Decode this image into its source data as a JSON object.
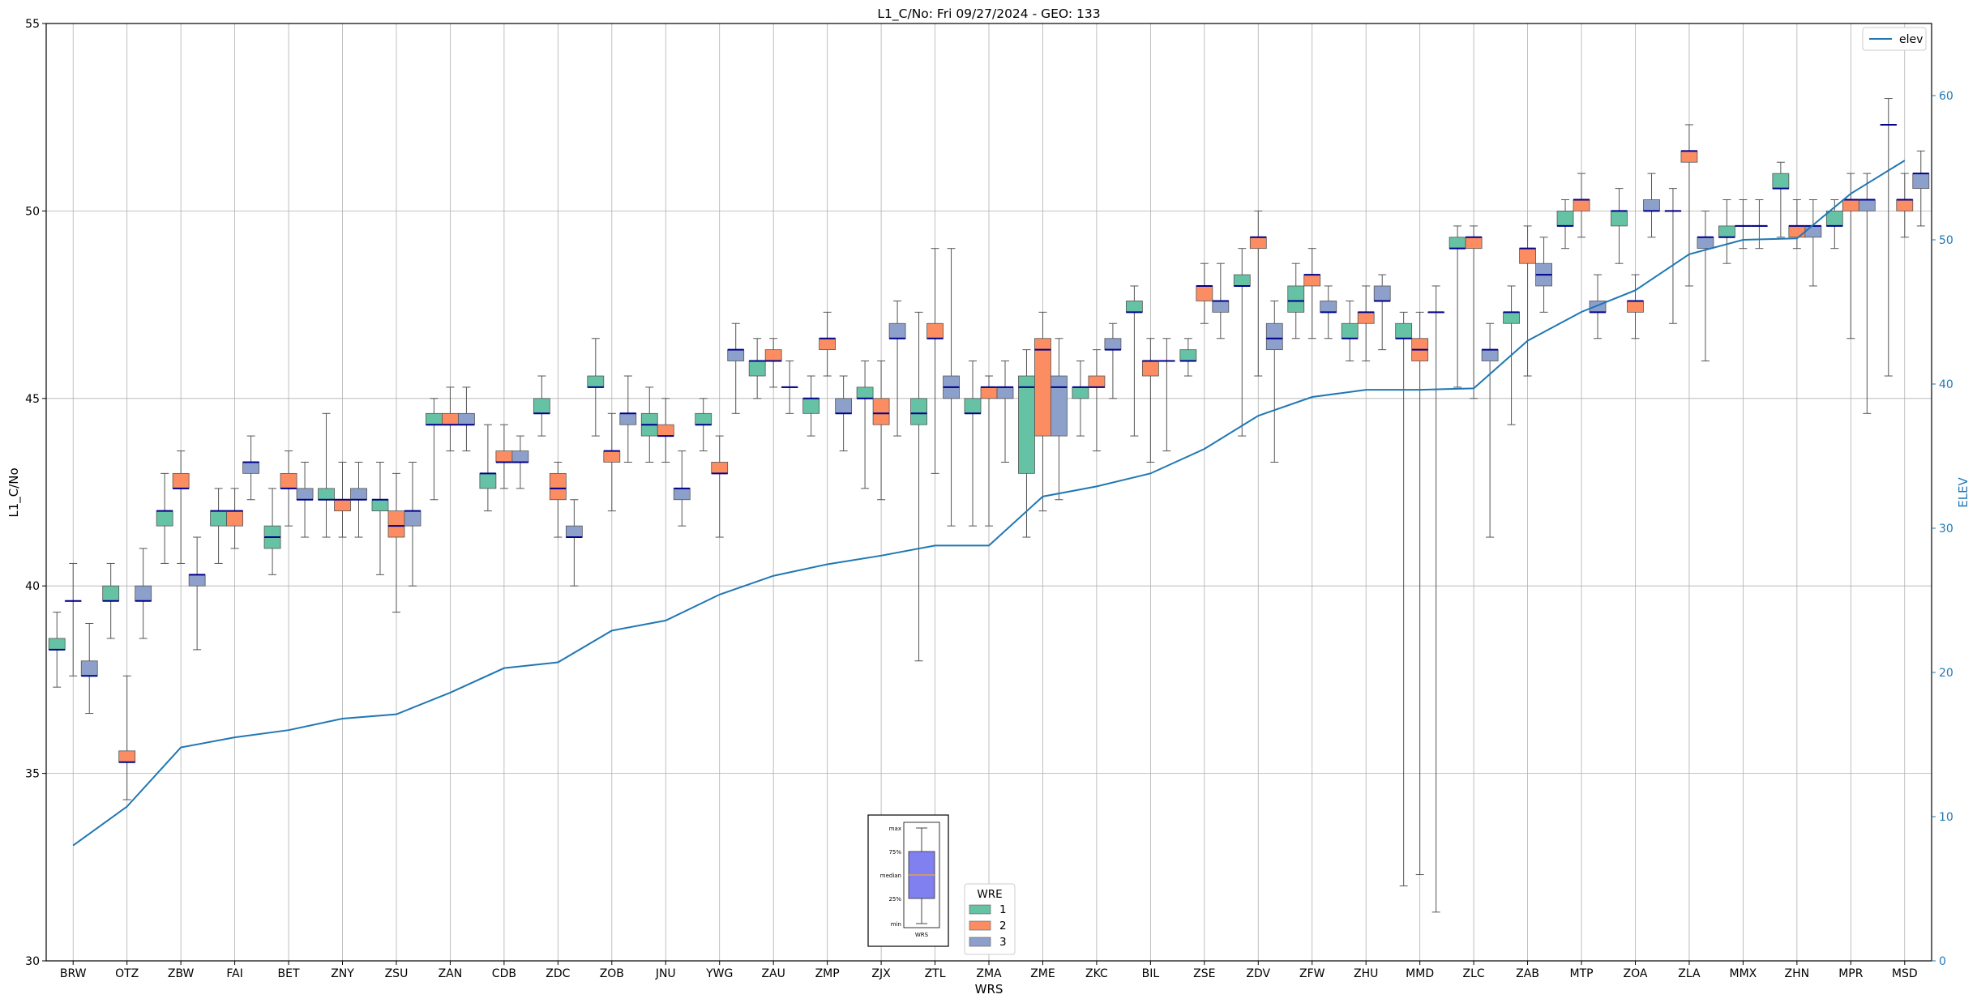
{
  "chart_data": {
    "type": "box",
    "title": "L1_C/No: Fri 09/27/2024 - GEO: 133",
    "xlabel": "WRS",
    "ylabel": "L1_C/No",
    "y2label": "ELEV",
    "ylim": [
      30,
      55
    ],
    "y2lim": [
      0,
      65
    ],
    "yticks": [
      30,
      35,
      40,
      45,
      50,
      55
    ],
    "y2ticks": [
      0,
      10,
      20,
      30,
      40,
      50,
      60
    ],
    "grid": true,
    "categories": [
      "BRW",
      "OTZ",
      "ZBW",
      "FAI",
      "BET",
      "ZNY",
      "ZSU",
      "ZAN",
      "CDB",
      "ZDC",
      "ZOB",
      "JNU",
      "YWG",
      "ZAU",
      "ZMP",
      "ZJX",
      "ZTL",
      "ZMA",
      "ZME",
      "ZKC",
      "BIL",
      "ZSE",
      "ZDV",
      "ZFW",
      "ZHU",
      "MMD",
      "ZLC",
      "ZAB",
      "MTP",
      "ZOA",
      "ZLA",
      "MMX",
      "ZHN",
      "MPR",
      "MSD"
    ],
    "legend_title": "WRE",
    "legend_position": "lower-center",
    "series": [
      {
        "name": "1",
        "color": "#66c2a5",
        "boxes": [
          {
            "whislo": 37.3,
            "q1": 38.3,
            "med": 38.3,
            "q3": 38.6,
            "whishi": 39.3
          },
          {
            "whislo": 38.6,
            "q1": 39.6,
            "med": 39.6,
            "q3": 40.0,
            "whishi": 40.6
          },
          {
            "whislo": 40.6,
            "q1": 41.6,
            "med": 42.0,
            "q3": 42.0,
            "whishi": 43.0
          },
          {
            "whislo": 40.6,
            "q1": 41.6,
            "med": 42.0,
            "q3": 42.0,
            "whishi": 42.6
          },
          {
            "whislo": 40.3,
            "q1": 41.0,
            "med": 41.3,
            "q3": 41.6,
            "whishi": 42.6
          },
          {
            "whislo": 41.3,
            "q1": 42.3,
            "med": 42.3,
            "q3": 42.6,
            "whishi": 44.6
          },
          {
            "whislo": 40.3,
            "q1": 42.0,
            "med": 42.3,
            "q3": 42.3,
            "whishi": 43.3
          },
          {
            "whislo": 42.3,
            "q1": 44.3,
            "med": 44.3,
            "q3": 44.6,
            "whishi": 45.0
          },
          {
            "whislo": 42.0,
            "q1": 42.6,
            "med": 43.0,
            "q3": 43.0,
            "whishi": 44.3
          },
          {
            "whislo": 44.0,
            "q1": 44.6,
            "med": 44.6,
            "q3": 45.0,
            "whishi": 45.6
          },
          {
            "whislo": 44.0,
            "q1": 45.3,
            "med": 45.3,
            "q3": 45.6,
            "whishi": 46.6
          },
          {
            "whislo": 43.3,
            "q1": 44.0,
            "med": 44.3,
            "q3": 44.6,
            "whishi": 45.3
          },
          {
            "whislo": 43.6,
            "q1": 44.3,
            "med": 44.3,
            "q3": 44.6,
            "whishi": 45.0
          },
          {
            "whislo": 45.0,
            "q1": 45.6,
            "med": 46.0,
            "q3": 46.0,
            "whishi": 46.6
          },
          {
            "whislo": 44.0,
            "q1": 44.6,
            "med": 45.0,
            "q3": 45.0,
            "whishi": 45.6
          },
          {
            "whislo": 42.6,
            "q1": 45.0,
            "med": 45.0,
            "q3": 45.3,
            "whishi": 46.0
          },
          {
            "whislo": 38.0,
            "q1": 44.3,
            "med": 44.6,
            "q3": 45.0,
            "whishi": 47.3
          },
          {
            "whislo": 41.6,
            "q1": 44.6,
            "med": 44.6,
            "q3": 45.0,
            "whishi": 46.0
          },
          {
            "whislo": 41.3,
            "q1": 43.0,
            "med": 45.3,
            "q3": 45.6,
            "whishi": 46.3
          },
          {
            "whislo": 44.0,
            "q1": 45.0,
            "med": 45.3,
            "q3": 45.3,
            "whishi": 46.0
          },
          {
            "whislo": 44.0,
            "q1": 47.3,
            "med": 47.3,
            "q3": 47.6,
            "whishi": 48.0
          },
          {
            "whislo": 45.6,
            "q1": 46.0,
            "med": 46.0,
            "q3": 46.3,
            "whishi": 46.6
          },
          {
            "whislo": 44.0,
            "q1": 48.0,
            "med": 48.0,
            "q3": 48.3,
            "whishi": 49.0
          },
          {
            "whislo": 46.6,
            "q1": 47.3,
            "med": 47.6,
            "q3": 48.0,
            "whishi": 48.6
          },
          {
            "whislo": 46.0,
            "q1": 46.6,
            "med": 46.6,
            "q3": 47.0,
            "whishi": 47.6
          },
          {
            "whislo": 32.0,
            "q1": 46.6,
            "med": 46.6,
            "q3": 47.0,
            "whishi": 47.3
          },
          {
            "whislo": 45.3,
            "q1": 49.0,
            "med": 49.0,
            "q3": 49.3,
            "whishi": 49.6
          },
          {
            "whislo": 44.3,
            "q1": 47.0,
            "med": 47.3,
            "q3": 47.3,
            "whishi": 48.0
          },
          {
            "whislo": 49.0,
            "q1": 49.6,
            "med": 49.6,
            "q3": 50.0,
            "whishi": 50.3
          },
          {
            "whislo": 48.6,
            "q1": 49.6,
            "med": 50.0,
            "q3": 50.0,
            "whishi": 50.6
          },
          {
            "whislo": 47.0,
            "q1": 50.0,
            "med": 50.0,
            "q3": 50.0,
            "whishi": 50.6
          },
          {
            "whislo": 48.6,
            "q1": 49.3,
            "med": 49.3,
            "q3": 49.6,
            "whishi": 50.3
          },
          {
            "whislo": 49.3,
            "q1": 50.6,
            "med": 50.6,
            "q3": 51.0,
            "whishi": 51.3
          },
          {
            "whislo": 49.0,
            "q1": 49.6,
            "med": 49.6,
            "q3": 50.0,
            "whishi": 50.3
          },
          {
            "whislo": 45.6,
            "q1": 52.3,
            "med": 52.3,
            "q3": 52.3,
            "whishi": 53.0
          }
        ]
      },
      {
        "name": "2",
        "color": "#fc8d62",
        "boxes": [
          {
            "whislo": 37.6,
            "q1": 39.6,
            "med": 39.6,
            "q3": 39.6,
            "whishi": 40.6
          },
          {
            "whislo": 34.3,
            "q1": 35.3,
            "med": 35.3,
            "q3": 35.6,
            "whishi": 37.6
          },
          {
            "whislo": 40.6,
            "q1": 42.6,
            "med": 42.6,
            "q3": 43.0,
            "whishi": 43.6
          },
          {
            "whislo": 41.0,
            "q1": 41.6,
            "med": 42.0,
            "q3": 42.0,
            "whishi": 42.6
          },
          {
            "whislo": 41.6,
            "q1": 42.6,
            "med": 42.6,
            "q3": 43.0,
            "whishi": 43.6
          },
          {
            "whislo": 41.3,
            "q1": 42.0,
            "med": 42.3,
            "q3": 42.3,
            "whishi": 43.3
          },
          {
            "whislo": 39.3,
            "q1": 41.3,
            "med": 41.6,
            "q3": 42.0,
            "whishi": 43.0
          },
          {
            "whislo": 43.6,
            "q1": 44.3,
            "med": 44.3,
            "q3": 44.6,
            "whishi": 45.3
          },
          {
            "whislo": 42.6,
            "q1": 43.3,
            "med": 43.3,
            "q3": 43.6,
            "whishi": 44.3
          },
          {
            "whislo": 41.3,
            "q1": 42.3,
            "med": 42.6,
            "q3": 43.0,
            "whishi": 43.3
          },
          {
            "whislo": 42.0,
            "q1": 43.3,
            "med": 43.6,
            "q3": 43.6,
            "whishi": 44.6
          },
          {
            "whislo": 43.3,
            "q1": 44.0,
            "med": 44.0,
            "q3": 44.3,
            "whishi": 45.0
          },
          {
            "whislo": 41.3,
            "q1": 43.0,
            "med": 43.0,
            "q3": 43.3,
            "whishi": 44.0
          },
          {
            "whislo": 45.3,
            "q1": 46.0,
            "med": 46.0,
            "q3": 46.3,
            "whishi": 46.6
          },
          {
            "whislo": 45.6,
            "q1": 46.3,
            "med": 46.6,
            "q3": 46.6,
            "whishi": 47.3
          },
          {
            "whislo": 42.3,
            "q1": 44.3,
            "med": 44.6,
            "q3": 45.0,
            "whishi": 46.0
          },
          {
            "whislo": 43.0,
            "q1": 46.6,
            "med": 46.6,
            "q3": 47.0,
            "whishi": 49.0
          },
          {
            "whislo": 41.6,
            "q1": 45.0,
            "med": 45.3,
            "q3": 45.3,
            "whishi": 45.6
          },
          {
            "whislo": 42.0,
            "q1": 44.0,
            "med": 46.3,
            "q3": 46.6,
            "whishi": 47.3
          },
          {
            "whislo": 43.6,
            "q1": 45.3,
            "med": 45.3,
            "q3": 45.6,
            "whishi": 46.3
          },
          {
            "whislo": 43.3,
            "q1": 45.6,
            "med": 46.0,
            "q3": 46.0,
            "whishi": 46.6
          },
          {
            "whislo": 47.0,
            "q1": 47.6,
            "med": 48.0,
            "q3": 48.0,
            "whishi": 48.6
          },
          {
            "whislo": 45.6,
            "q1": 49.0,
            "med": 49.3,
            "q3": 49.3,
            "whishi": 50.0
          },
          {
            "whislo": 46.6,
            "q1": 48.0,
            "med": 48.3,
            "q3": 48.3,
            "whishi": 49.0
          },
          {
            "whislo": 46.0,
            "q1": 47.0,
            "med": 47.3,
            "q3": 47.3,
            "whishi": 48.0
          },
          {
            "whislo": 32.3,
            "q1": 46.0,
            "med": 46.3,
            "q3": 46.6,
            "whishi": 47.3
          },
          {
            "whislo": 45.0,
            "q1": 49.0,
            "med": 49.3,
            "q3": 49.3,
            "whishi": 49.6
          },
          {
            "whislo": 45.6,
            "q1": 48.6,
            "med": 49.0,
            "q3": 49.0,
            "whishi": 49.6
          },
          {
            "whislo": 49.3,
            "q1": 50.0,
            "med": 50.3,
            "q3": 50.3,
            "whishi": 51.0
          },
          {
            "whislo": 46.6,
            "q1": 47.3,
            "med": 47.6,
            "q3": 47.6,
            "whishi": 48.3
          },
          {
            "whislo": 48.0,
            "q1": 51.3,
            "med": 51.6,
            "q3": 51.6,
            "whishi": 52.3
          },
          {
            "whislo": 49.0,
            "q1": 49.6,
            "med": 49.6,
            "q3": 49.6,
            "whishi": 50.3
          },
          {
            "whislo": 49.0,
            "q1": 49.3,
            "med": 49.6,
            "q3": 49.6,
            "whishi": 50.3
          },
          {
            "whislo": 46.6,
            "q1": 50.0,
            "med": 50.3,
            "q3": 50.3,
            "whishi": 51.0
          },
          {
            "whislo": 49.3,
            "q1": 50.0,
            "med": 50.3,
            "q3": 50.3,
            "whishi": 51.0
          }
        ]
      },
      {
        "name": "3",
        "color": "#8da0cb",
        "boxes": [
          {
            "whislo": 36.6,
            "q1": 37.6,
            "med": 37.6,
            "q3": 38.0,
            "whishi": 39.0
          },
          {
            "whislo": 38.6,
            "q1": 39.6,
            "med": 39.6,
            "q3": 40.0,
            "whishi": 41.0
          },
          {
            "whislo": 38.3,
            "q1": 40.0,
            "med": 40.3,
            "q3": 40.3,
            "whishi": 41.3
          },
          {
            "whislo": 42.3,
            "q1": 43.0,
            "med": 43.3,
            "q3": 43.3,
            "whishi": 44.0
          },
          {
            "whislo": 41.3,
            "q1": 42.3,
            "med": 42.3,
            "q3": 42.6,
            "whishi": 43.3
          },
          {
            "whislo": 41.3,
            "q1": 42.3,
            "med": 42.3,
            "q3": 42.6,
            "whishi": 43.3
          },
          {
            "whislo": 40.0,
            "q1": 41.6,
            "med": 42.0,
            "q3": 42.0,
            "whishi": 43.3
          },
          {
            "whislo": 43.6,
            "q1": 44.3,
            "med": 44.3,
            "q3": 44.6,
            "whishi": 45.3
          },
          {
            "whislo": 42.6,
            "q1": 43.3,
            "med": 43.3,
            "q3": 43.6,
            "whishi": 44.0
          },
          {
            "whislo": 40.0,
            "q1": 41.3,
            "med": 41.3,
            "q3": 41.6,
            "whishi": 42.3
          },
          {
            "whislo": 43.3,
            "q1": 44.3,
            "med": 44.6,
            "q3": 44.6,
            "whishi": 45.6
          },
          {
            "whislo": 41.6,
            "q1": 42.3,
            "med": 42.6,
            "q3": 42.6,
            "whishi": 43.6
          },
          {
            "whislo": 44.6,
            "q1": 46.0,
            "med": 46.3,
            "q3": 46.3,
            "whishi": 47.0
          },
          {
            "whislo": 44.6,
            "q1": 45.3,
            "med": 45.3,
            "q3": 45.3,
            "whishi": 46.0
          },
          {
            "whislo": 43.6,
            "q1": 44.6,
            "med": 44.6,
            "q3": 45.0,
            "whishi": 45.6
          },
          {
            "whislo": 44.0,
            "q1": 46.6,
            "med": 46.6,
            "q3": 47.0,
            "whishi": 47.6
          },
          {
            "whislo": 41.6,
            "q1": 45.0,
            "med": 45.3,
            "q3": 45.6,
            "whishi": 49.0
          },
          {
            "whislo": 43.3,
            "q1": 45.0,
            "med": 45.3,
            "q3": 45.3,
            "whishi": 46.0
          },
          {
            "whislo": 42.3,
            "q1": 44.0,
            "med": 45.3,
            "q3": 45.6,
            "whishi": 46.6
          },
          {
            "whislo": 45.0,
            "q1": 46.3,
            "med": 46.3,
            "q3": 46.6,
            "whishi": 47.0
          },
          {
            "whislo": 43.6,
            "q1": 46.0,
            "med": 46.0,
            "q3": 46.0,
            "whishi": 46.6
          },
          {
            "whislo": 46.6,
            "q1": 47.3,
            "med": 47.6,
            "q3": 47.6,
            "whishi": 48.6
          },
          {
            "whislo": 43.3,
            "q1": 46.3,
            "med": 46.6,
            "q3": 47.0,
            "whishi": 47.6
          },
          {
            "whislo": 46.6,
            "q1": 47.3,
            "med": 47.3,
            "q3": 47.6,
            "whishi": 48.0
          },
          {
            "whislo": 46.3,
            "q1": 47.6,
            "med": 47.6,
            "q3": 48.0,
            "whishi": 48.3
          },
          {
            "whislo": 31.3,
            "q1": 47.3,
            "med": 47.3,
            "q3": 47.3,
            "whishi": 48.0
          },
          {
            "whislo": 41.3,
            "q1": 46.0,
            "med": 46.3,
            "q3": 46.3,
            "whishi": 47.0
          },
          {
            "whislo": 47.3,
            "q1": 48.0,
            "med": 48.3,
            "q3": 48.6,
            "whishi": 49.3
          },
          {
            "whislo": 46.6,
            "q1": 47.3,
            "med": 47.3,
            "q3": 47.6,
            "whishi": 48.3
          },
          {
            "whislo": 49.3,
            "q1": 50.0,
            "med": 50.0,
            "q3": 50.3,
            "whishi": 51.0
          },
          {
            "whislo": 46.0,
            "q1": 49.0,
            "med": 49.3,
            "q3": 49.3,
            "whishi": 50.0
          },
          {
            "whislo": 49.0,
            "q1": 49.6,
            "med": 49.6,
            "q3": 49.6,
            "whishi": 50.3
          },
          {
            "whislo": 48.0,
            "q1": 49.3,
            "med": 49.6,
            "q3": 49.6,
            "whishi": 50.3
          },
          {
            "whislo": 44.6,
            "q1": 50.0,
            "med": 50.3,
            "q3": 50.3,
            "whishi": 51.0
          },
          {
            "whislo": 49.6,
            "q1": 50.6,
            "med": 51.0,
            "q3": 51.0,
            "whishi": 51.6
          }
        ]
      }
    ],
    "line": {
      "name": "elev",
      "axis": "right",
      "color": "#1f77b4",
      "values": [
        8.0,
        10.7,
        14.8,
        15.5,
        16.0,
        16.8,
        17.1,
        18.6,
        20.3,
        20.7,
        22.9,
        23.6,
        25.4,
        26.7,
        27.5,
        28.1,
        28.8,
        28.8,
        32.2,
        32.9,
        33.8,
        35.5,
        37.8,
        39.1,
        39.6,
        39.6,
        39.7,
        43.0,
        45.0,
        46.5,
        49.0,
        50.0,
        50.1,
        53.2,
        55.5
      ]
    }
  },
  "inset": {
    "labels": [
      "max",
      "75%",
      "median",
      "25%",
      "min"
    ],
    "xlabel": "WRS",
    "box_color": "#8080f0",
    "median_color": "#e8a040"
  }
}
